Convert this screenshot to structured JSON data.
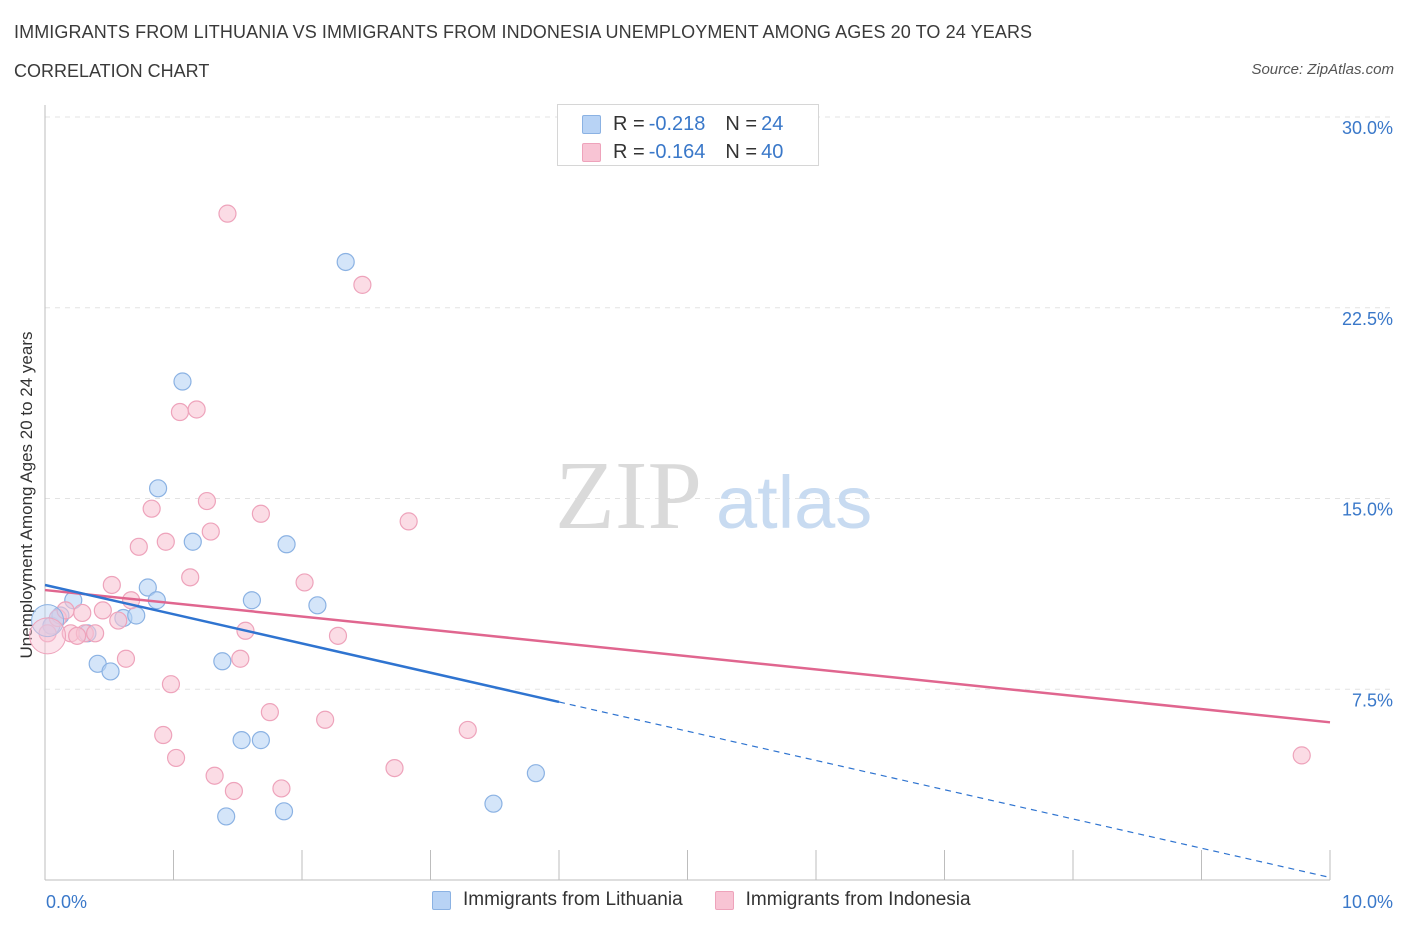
{
  "title": "IMMIGRANTS FROM LITHUANIA VS IMMIGRANTS FROM INDONESIA UNEMPLOYMENT AMONG AGES 20 TO 24 YEARS",
  "subtitle": "CORRELATION CHART",
  "source": "Source: ZipAtlas.com",
  "watermark": {
    "zip": "ZIP",
    "atlas": "atlas"
  },
  "stats": {
    "r_label": "R = ",
    "n_label": "N = ",
    "lithuania": {
      "r": "-0.218",
      "n": "24"
    },
    "indonesia": {
      "r": "-0.164",
      "n": "40"
    }
  },
  "colors": {
    "lithuania_fill": "#b8d3f5",
    "lithuania_stroke": "#8bb2e3",
    "lithuania_line": "#2f74d0",
    "indonesia_fill": "#f8c4d4",
    "indonesia_stroke": "#eea3bb",
    "indonesia_line": "#e0668f",
    "tick_label": "#3a78c9",
    "grid": "#e3e3e3"
  },
  "chart_data": {
    "type": "scatter",
    "title": "IMMIGRANTS FROM LITHUANIA VS IMMIGRANTS FROM INDONESIA UNEMPLOYMENT AMONG AGES 20 TO 24 YEARS",
    "xlabel": "",
    "ylabel": "Unemployment Among Ages 20 to 24 years",
    "xlim": [
      0,
      10
    ],
    "ylim": [
      0,
      30
    ],
    "x_tick_labels": {
      "left": "0.0%",
      "right": "10.0%"
    },
    "y_ticks": [
      7.5,
      15.0,
      22.5,
      30.0
    ],
    "y_tick_labels": [
      "7.5%",
      "15.0%",
      "22.5%",
      "30.0%"
    ],
    "grid": true,
    "legend": "bottom-center",
    "series": [
      {
        "name": "Immigrants from Lithuania",
        "points": [
          [
            0.05,
            10.0
          ],
          [
            0.12,
            10.4
          ],
          [
            0.22,
            11.0
          ],
          [
            0.33,
            9.7
          ],
          [
            0.41,
            8.5
          ],
          [
            0.51,
            8.2
          ],
          [
            0.61,
            10.3
          ],
          [
            0.71,
            10.4
          ],
          [
            0.8,
            11.5
          ],
          [
            0.87,
            11.0
          ],
          [
            0.88,
            15.4
          ],
          [
            1.07,
            19.6
          ],
          [
            1.15,
            13.3
          ],
          [
            1.38,
            8.6
          ],
          [
            1.41,
            2.5
          ],
          [
            1.53,
            5.5
          ],
          [
            1.61,
            11.0
          ],
          [
            1.68,
            5.5
          ],
          [
            1.86,
            2.7
          ],
          [
            1.88,
            13.2
          ],
          [
            2.12,
            10.8
          ],
          [
            2.34,
            24.3
          ],
          [
            3.49,
            3.0
          ],
          [
            3.82,
            4.2
          ]
        ],
        "trend": {
          "x": [
            0.0,
            4.0
          ],
          "y": [
            11.6,
            7.0
          ],
          "dashed_extension": {
            "x": [
              4.0,
              10.0
            ],
            "y": [
              7.0,
              0.1
            ]
          }
        }
      },
      {
        "name": "Immigrants from Indonesia",
        "points": [
          [
            0.02,
            9.7
          ],
          [
            0.1,
            10.3
          ],
          [
            0.16,
            10.6
          ],
          [
            0.2,
            9.7
          ],
          [
            0.29,
            10.5
          ],
          [
            0.31,
            9.7
          ],
          [
            0.39,
            9.7
          ],
          [
            0.45,
            10.6
          ],
          [
            0.52,
            11.6
          ],
          [
            0.57,
            10.2
          ],
          [
            0.63,
            8.7
          ],
          [
            0.67,
            11.0
          ],
          [
            0.73,
            13.1
          ],
          [
            0.92,
            5.7
          ],
          [
            0.83,
            14.6
          ],
          [
            0.94,
            13.3
          ],
          [
            0.98,
            7.7
          ],
          [
            1.02,
            4.8
          ],
          [
            1.05,
            18.4
          ],
          [
            1.18,
            18.5
          ],
          [
            1.13,
            11.9
          ],
          [
            1.26,
            14.9
          ],
          [
            1.29,
            13.7
          ],
          [
            1.32,
            4.1
          ],
          [
            1.42,
            26.2
          ],
          [
            1.47,
            3.5
          ],
          [
            1.52,
            8.7
          ],
          [
            1.56,
            9.8
          ],
          [
            1.68,
            14.4
          ],
          [
            1.75,
            6.6
          ],
          [
            1.84,
            3.6
          ],
          [
            2.02,
            11.7
          ],
          [
            2.18,
            6.3
          ],
          [
            2.28,
            9.6
          ],
          [
            2.47,
            23.4
          ],
          [
            2.72,
            4.4
          ],
          [
            2.83,
            14.1
          ],
          [
            3.29,
            5.9
          ],
          [
            9.78,
            4.9
          ],
          [
            0.25,
            9.6
          ]
        ],
        "trend": {
          "x": [
            0.0,
            10.0
          ],
          "y": [
            11.4,
            6.2
          ]
        }
      }
    ]
  }
}
